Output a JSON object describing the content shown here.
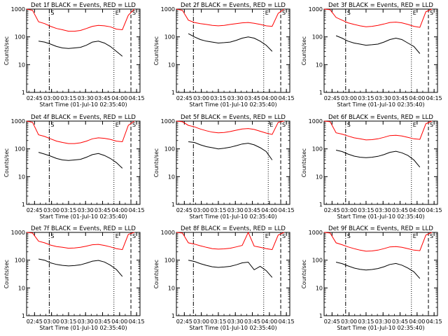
{
  "figure": {
    "ylabel": "Counts/sec",
    "xlabel": "Start Time (01-Jul-10 02:35:40)"
  },
  "chart_data": [
    {
      "title": "Det 1f BLACK = Events, RED = LLD",
      "type": "line",
      "y_scale": "log",
      "ylim": [
        1,
        1000
      ],
      "yticks": [
        "1",
        "10",
        "100",
        "1000"
      ],
      "xticks": [
        "02:45",
        "03:00",
        "03:15",
        "03:30",
        "03:45",
        "04:00",
        "04:15"
      ],
      "markers": [
        {
          "label": "S",
          "style": "dash-dot",
          "x": "02:58"
        },
        {
          "label": "E",
          "style": "dotted",
          "x": "03:55"
        },
        {
          "label": "S",
          "style": "dashed",
          "x": "04:10"
        }
      ],
      "series": [
        {
          "name": "LLD",
          "color": "#ff0000",
          "values": [
            1000,
            900,
            350,
            300,
            240,
            200,
            180,
            160,
            160,
            170,
            200,
            240,
            260,
            250,
            230,
            190,
            180,
            600,
            1000
          ]
        },
        {
          "name": "Events",
          "color": "#000000",
          "values": [
            0,
            0,
            70,
            65,
            55,
            45,
            40,
            38,
            40,
            42,
            50,
            65,
            70,
            60,
            45,
            30,
            20,
            0,
            0
          ]
        }
      ]
    },
    {
      "title": "Det 2f BLACK = Events, RED = LLD",
      "type": "line",
      "y_scale": "log",
      "ylim": [
        1,
        1000
      ],
      "yticks": [
        "1",
        "10",
        "100",
        "1000"
      ],
      "xticks": [
        "02:45",
        "03:00",
        "03:15",
        "03:30",
        "03:45",
        "04:00",
        "04:15"
      ],
      "markers": [
        {
          "label": "",
          "style": "dash-dot",
          "x": "02:53"
        },
        {
          "label": "E",
          "style": "dotted",
          "x": "03:55"
        },
        {
          "label": "S",
          "style": "dashed",
          "x": "04:10"
        }
      ],
      "series": [
        {
          "name": "LLD",
          "color": "#ff0000",
          "values": [
            1000,
            900,
            400,
            330,
            300,
            280,
            260,
            250,
            260,
            280,
            300,
            320,
            330,
            310,
            280,
            250,
            240,
            700,
            1000
          ]
        },
        {
          "name": "Events",
          "color": "#000000",
          "values": [
            0,
            0,
            130,
            100,
            80,
            70,
            65,
            60,
            62,
            65,
            75,
            90,
            100,
            90,
            70,
            50,
            30,
            0,
            0
          ]
        }
      ]
    },
    {
      "title": "Det 3f BLACK = Events, RED = LLD",
      "type": "line",
      "y_scale": "log",
      "ylim": [
        1,
        1000
      ],
      "yticks": [
        "1",
        "10",
        "100",
        "1000"
      ],
      "xticks": [
        "02:45",
        "03:00",
        "03:15",
        "03:30",
        "03:45",
        "04:00",
        "04:15"
      ],
      "markers": [
        {
          "label": "S",
          "style": "dash-dot",
          "x": "02:57"
        },
        {
          "label": "E",
          "style": "dotted",
          "x": "03:55"
        },
        {
          "label": "S",
          "style": "dashed",
          "x": "04:10"
        }
      ],
      "series": [
        {
          "name": "LLD",
          "color": "#ff0000",
          "values": [
            1000,
            950,
            500,
            400,
            320,
            280,
            250,
            230,
            240,
            260,
            290,
            330,
            340,
            320,
            280,
            240,
            220,
            800,
            1000
          ]
        },
        {
          "name": "Events",
          "color": "#000000",
          "values": [
            0,
            0,
            110,
            90,
            70,
            60,
            55,
            50,
            52,
            55,
            65,
            80,
            90,
            80,
            60,
            45,
            25,
            0,
            0
          ]
        }
      ]
    },
    {
      "title": "Det 4f BLACK = Events, RED = LLD",
      "type": "line",
      "y_scale": "log",
      "ylim": [
        1,
        1000
      ],
      "yticks": [
        "1",
        "10",
        "100",
        "1000"
      ],
      "xticks": [
        "02:45",
        "03:00",
        "03:15",
        "03:30",
        "03:45",
        "04:00",
        "04:15"
      ],
      "markers": [
        {
          "label": "S",
          "style": "dash-dot",
          "x": "02:58"
        },
        {
          "label": "E",
          "style": "dotted",
          "x": "03:55"
        },
        {
          "label": "S",
          "style": "dashed",
          "x": "04:10"
        }
      ],
      "series": [
        {
          "name": "LLD",
          "color": "#ff0000",
          "values": [
            1000,
            900,
            320,
            280,
            230,
            190,
            170,
            155,
            155,
            165,
            190,
            230,
            250,
            240,
            220,
            190,
            180,
            700,
            1000
          ]
        },
        {
          "name": "Events",
          "color": "#000000",
          "values": [
            0,
            0,
            75,
            65,
            55,
            45,
            40,
            38,
            40,
            42,
            50,
            62,
            68,
            58,
            45,
            32,
            20,
            0,
            0
          ]
        }
      ]
    },
    {
      "title": "Det 5f BLACK = Events, RED = LLD",
      "type": "line",
      "y_scale": "log",
      "ylim": [
        1,
        1000
      ],
      "yticks": [
        "1",
        "10",
        "100",
        "1000"
      ],
      "xticks": [
        "02:45",
        "03:00",
        "03:15",
        "03:30",
        "03:45",
        "04:00",
        "04:15"
      ],
      "markers": [
        {
          "label": "",
          "style": "dash-dot",
          "x": "02:53"
        },
        {
          "label": "E",
          "style": "dotted",
          "x": "03:59"
        },
        {
          "label": "S",
          "style": "dashed",
          "x": "04:10"
        }
      ],
      "series": [
        {
          "name": "LLD",
          "color": "#ff0000",
          "values": [
            1000,
            950,
            700,
            620,
            520,
            450,
            400,
            380,
            390,
            420,
            470,
            520,
            540,
            500,
            430,
            370,
            330,
            900,
            1000
          ]
        },
        {
          "name": "Events",
          "color": "#000000",
          "values": [
            0,
            0,
            180,
            170,
            140,
            120,
            110,
            100,
            105,
            115,
            130,
            150,
            160,
            140,
            110,
            80,
            40,
            0,
            0
          ]
        }
      ]
    },
    {
      "title": "Det 6f BLACK = Events, RED = LLD",
      "type": "line",
      "y_scale": "log",
      "ylim": [
        1,
        1000
      ],
      "yticks": [
        "1",
        "10",
        "100",
        "1000"
      ],
      "xticks": [
        "02:45",
        "03:00",
        "03:15",
        "03:30",
        "03:45",
        "04:00",
        "04:15"
      ],
      "markers": [
        {
          "label": "S",
          "style": "dash-dot",
          "x": "02:57"
        },
        {
          "label": "E",
          "style": "dotted",
          "x": "03:55"
        },
        {
          "label": "S",
          "style": "dashed",
          "x": "04:10"
        }
      ],
      "series": [
        {
          "name": "LLD",
          "color": "#ff0000",
          "values": [
            1000,
            950,
            380,
            340,
            290,
            250,
            230,
            210,
            215,
            230,
            260,
            300,
            310,
            290,
            260,
            230,
            220,
            800,
            1000
          ]
        },
        {
          "name": "Events",
          "color": "#000000",
          "values": [
            0,
            0,
            90,
            80,
            65,
            55,
            50,
            48,
            50,
            54,
            62,
            75,
            82,
            72,
            58,
            40,
            22,
            0,
            0
          ]
        }
      ]
    },
    {
      "title": "Det 7f BLACK = Events, RED = LLD",
      "type": "line",
      "y_scale": "log",
      "ylim": [
        1,
        1000
      ],
      "yticks": [
        "1",
        "10",
        "100",
        "1000"
      ],
      "xticks": [
        "02:45",
        "03:00",
        "03:15",
        "03:30",
        "03:45",
        "04:00",
        "04:15"
      ],
      "markers": [
        {
          "label": "S",
          "style": "dash-dot",
          "x": "02:58"
        },
        {
          "label": "E",
          "style": "dotted",
          "x": "03:55"
        },
        {
          "label": "S",
          "style": "dashed",
          "x": "04:10"
        }
      ],
      "series": [
        {
          "name": "LLD",
          "color": "#ff0000",
          "values": [
            1000,
            950,
            480,
            420,
            350,
            310,
            290,
            270,
            275,
            290,
            320,
            360,
            370,
            340,
            300,
            260,
            240,
            850,
            1000
          ]
        },
        {
          "name": "Events",
          "color": "#000000",
          "values": [
            0,
            0,
            110,
            100,
            80,
            70,
            65,
            62,
            64,
            68,
            78,
            92,
            98,
            86,
            66,
            46,
            26,
            0,
            0
          ]
        }
      ]
    },
    {
      "title": "Det 8f BLACK = Events, RED = LLD",
      "type": "line",
      "y_scale": "log",
      "ylim": [
        1,
        1000
      ],
      "yticks": [
        "1",
        "10",
        "100",
        "1000"
      ],
      "xticks": [
        "02:45",
        "03:00",
        "03:15",
        "03:30",
        "03:45",
        "04:00",
        "04:15"
      ],
      "markers": [
        {
          "label": "",
          "style": "dash-dot",
          "x": "02:53"
        },
        {
          "label": "E",
          "style": "dotted",
          "x": "03:55"
        },
        {
          "label": "S",
          "style": "dashed",
          "x": "04:10"
        }
      ],
      "series": [
        {
          "name": "LLD",
          "color": "#ff0000",
          "values": [
            1000,
            950,
            420,
            380,
            330,
            290,
            260,
            250,
            255,
            270,
            300,
            340,
            1000,
            320,
            290,
            260,
            240,
            800,
            1000
          ]
        },
        {
          "name": "Events",
          "color": "#000000",
          "values": [
            0,
            0,
            100,
            90,
            75,
            65,
            58,
            55,
            57,
            60,
            68,
            80,
            85,
            45,
            60,
            42,
            24,
            0,
            0
          ]
        }
      ]
    },
    {
      "title": "Det 9f BLACK = Events, RED = LLD",
      "type": "line",
      "y_scale": "log",
      "ylim": [
        1,
        1000
      ],
      "yticks": [
        "1",
        "10",
        "100",
        "1000"
      ],
      "xticks": [
        "02:45",
        "03:00",
        "03:15",
        "03:30",
        "03:45",
        "04:00",
        "04:15"
      ],
      "markers": [
        {
          "label": "S",
          "style": "dash-dot",
          "x": "02:57"
        },
        {
          "label": "E",
          "style": "dotted",
          "x": "03:55"
        },
        {
          "label": "S",
          "style": "dashed",
          "x": "04:10"
        }
      ],
      "series": [
        {
          "name": "LLD",
          "color": "#ff0000",
          "values": [
            1000,
            950,
            420,
            360,
            300,
            260,
            230,
            210,
            215,
            230,
            260,
            300,
            310,
            290,
            260,
            230,
            220,
            800,
            1000
          ]
        },
        {
          "name": "Events",
          "color": "#000000",
          "values": [
            0,
            0,
            85,
            75,
            62,
            52,
            47,
            44,
            46,
            50,
            58,
            70,
            76,
            66,
            52,
            38,
            22,
            0,
            0
          ]
        }
      ]
    }
  ]
}
